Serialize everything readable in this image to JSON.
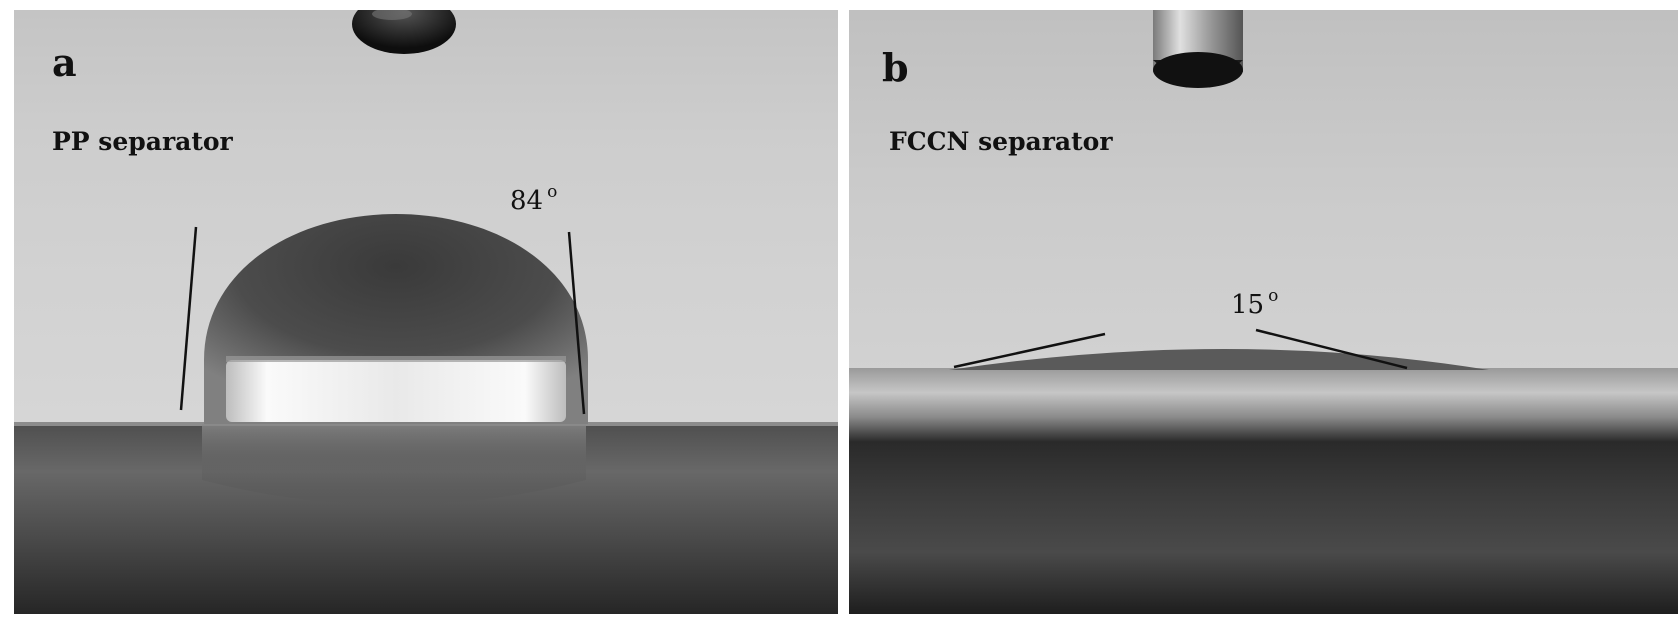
{
  "figure": {
    "panels": [
      {
        "letter": "a",
        "caption": "PP separator",
        "angle_value": "84",
        "angle_unit": "o",
        "contact_angle_deg": 84
      },
      {
        "letter": "b",
        "caption": "FCCN separator",
        "angle_value": "15",
        "angle_unit": "o",
        "contact_angle_deg": 15
      }
    ]
  },
  "colors": {
    "background_light": "#cfcfcf",
    "substrate_dark": "#3c3c3c",
    "droplet_dark": "#4a4a4a",
    "reflection": "#f2f2f2",
    "tangent_line": "#111111"
  }
}
